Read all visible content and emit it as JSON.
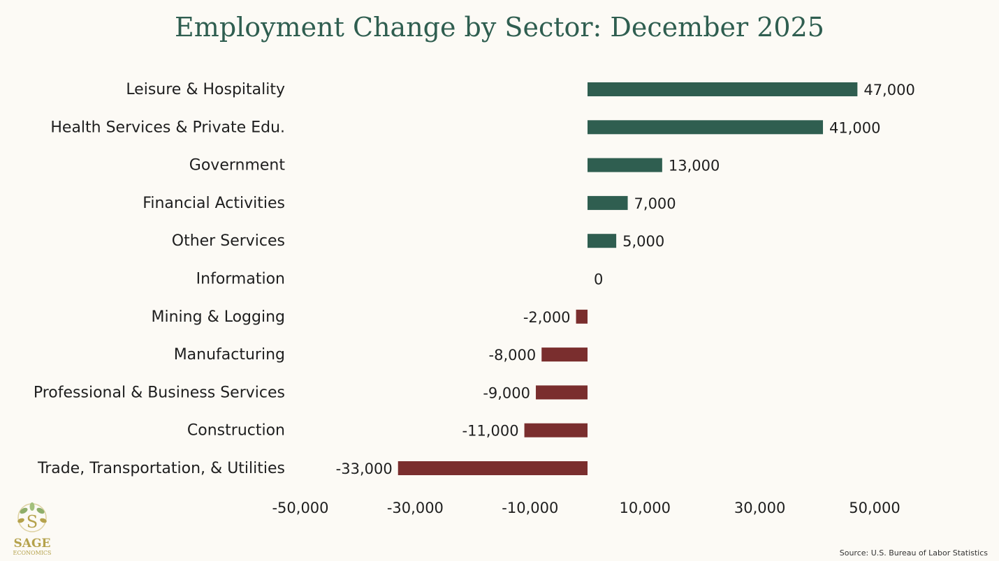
{
  "chart_data": {
    "type": "bar",
    "orientation": "horizontal",
    "title": "Employment Change by Sector: December 2025",
    "categories": [
      "Leisure & Hospitality",
      "Health Services & Private Edu.",
      "Government",
      "Financial Activities",
      "Other Services",
      "Information",
      "Mining & Logging",
      "Manufacturing",
      "Professional & Business Services",
      "Construction",
      "Trade, Transportation, & Utilities"
    ],
    "values": [
      47000,
      41000,
      13000,
      7000,
      5000,
      0,
      -2000,
      -8000,
      -9000,
      -11000,
      -33000
    ],
    "value_labels": [
      "47,000",
      "41,000",
      "13,000",
      "7,000",
      "5,000",
      "0",
      "-2,000",
      "-8,000",
      "-9,000",
      "-11,000",
      "-33,000"
    ],
    "xlim": [
      -50000,
      50000
    ],
    "xticks": [
      -50000,
      -30000,
      -10000,
      10000,
      30000,
      50000
    ],
    "xtick_labels": [
      "-50,000",
      "-30,000",
      "-10,000",
      "10,000",
      "30,000",
      "50,000"
    ],
    "grid": false,
    "legend": "none",
    "colors": {
      "positive": "#2f5e50",
      "negative": "#7a2e2e"
    }
  },
  "source": "Source: U.S. Bureau of Labor Statistics",
  "logo": {
    "name": "SAGE",
    "sub": "ECONOMICS",
    "icon": "leaf-logo-icon"
  }
}
